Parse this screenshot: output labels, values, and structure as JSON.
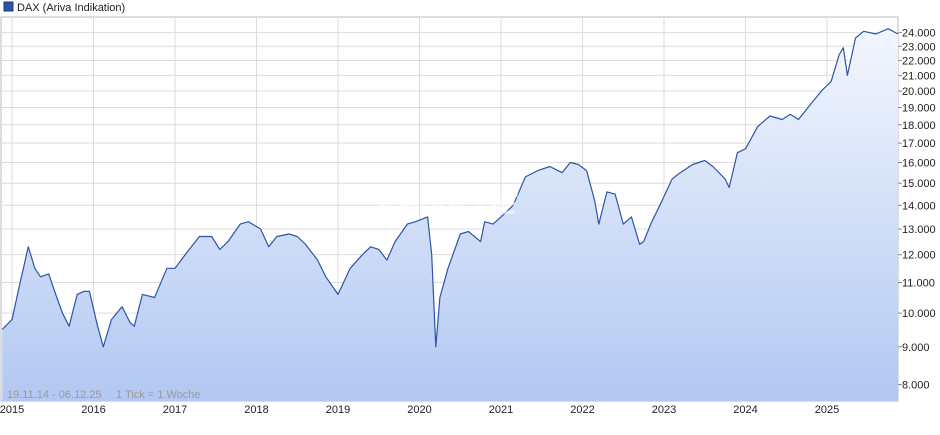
{
  "legend": {
    "label": "DAX (Ariva Indikation)",
    "color": "#2c55a8"
  },
  "info": {
    "range": "19.11.14 - 06.12.25",
    "tick": "1 Tick = 1 Woche"
  },
  "watermark": "ARIVA.DE",
  "colors": {
    "line": "#2c55a8",
    "area_top": "#f3f6fe",
    "area_bottom": "#b2c8f2",
    "grid": "#dddddd",
    "plot_border": "#bbbbbb"
  },
  "chart_data": {
    "type": "area",
    "scale": "log",
    "ylim": [
      7600,
      25200
    ],
    "x_tick_labels": [
      "2015",
      "2016",
      "2017",
      "2018",
      "2019",
      "2020",
      "2021",
      "2022",
      "2023",
      "2024",
      "2025"
    ],
    "y_tick_values": [
      8000,
      9000,
      10000,
      11000,
      12000,
      13000,
      14000,
      15000,
      16000,
      17000,
      18000,
      19000,
      20000,
      21000,
      22000,
      23000,
      24000
    ],
    "y_tick_labels": [
      "8.000",
      "9.000",
      "10.000",
      "11.000",
      "12.000",
      "13.000",
      "14.000",
      "15.000",
      "16.000",
      "17.000",
      "18.000",
      "19.000",
      "20.000",
      "21.000",
      "22.000",
      "23.000",
      "24.000"
    ],
    "x": [
      2014.88,
      2015.0,
      2015.1,
      2015.2,
      2015.28,
      2015.35,
      2015.45,
      2015.55,
      2015.62,
      2015.7,
      2015.8,
      2015.88,
      2015.95,
      2016.05,
      2016.12,
      2016.22,
      2016.35,
      2016.45,
      2016.5,
      2016.6,
      2016.75,
      2016.9,
      2017.0,
      2017.15,
      2017.3,
      2017.45,
      2017.55,
      2017.65,
      2017.8,
      2017.9,
      2018.05,
      2018.15,
      2018.25,
      2018.4,
      2018.5,
      2018.6,
      2018.75,
      2018.85,
      2018.95,
      2019.0,
      2019.15,
      2019.3,
      2019.4,
      2019.5,
      2019.6,
      2019.7,
      2019.85,
      2019.95,
      2020.1,
      2020.15,
      2020.2,
      2020.25,
      2020.35,
      2020.5,
      2020.6,
      2020.75,
      2020.8,
      2020.9,
      2021.0,
      2021.15,
      2021.3,
      2021.45,
      2021.6,
      2021.75,
      2021.85,
      2021.95,
      2022.05,
      2022.15,
      2022.2,
      2022.3,
      2022.4,
      2022.5,
      2022.6,
      2022.7,
      2022.75,
      2022.85,
      2022.95,
      2023.1,
      2023.2,
      2023.35,
      2023.5,
      2023.6,
      2023.75,
      2023.8,
      2023.9,
      2024.0,
      2024.15,
      2024.3,
      2024.45,
      2024.55,
      2024.65,
      2024.8,
      2024.95,
      2025.05,
      2025.15,
      2025.2,
      2025.25,
      2025.35,
      2025.45,
      2025.6,
      2025.75,
      2025.9
    ],
    "y": [
      9500,
      9800,
      11000,
      12300,
      11500,
      11200,
      11300,
      10500,
      10000,
      9600,
      10600,
      10700,
      10700,
      9600,
      9000,
      9800,
      10200,
      9700,
      9600,
      10600,
      10500,
      11500,
      11500,
      12100,
      12700,
      12700,
      12200,
      12500,
      13200,
      13300,
      13000,
      12300,
      12700,
      12800,
      12700,
      12400,
      11800,
      11200,
      10800,
      10600,
      11500,
      12000,
      12300,
      12200,
      11800,
      12500,
      13200,
      13300,
      13500,
      12000,
      9000,
      10500,
      11500,
      12800,
      12900,
      12500,
      13300,
      13200,
      13500,
      14000,
      15300,
      15600,
      15800,
      15500,
      16000,
      15900,
      15600,
      14200,
      13200,
      14600,
      14500,
      13200,
      13500,
      12400,
      12500,
      13300,
      14000,
      15200,
      15500,
      15900,
      16100,
      15800,
      15200,
      14800,
      16500,
      16700,
      17900,
      18500,
      18300,
      18600,
      18300,
      19200,
      20100,
      20600,
      22400,
      22900,
      21000,
      23600,
      24100,
      23900,
      24300,
      23900
    ]
  }
}
